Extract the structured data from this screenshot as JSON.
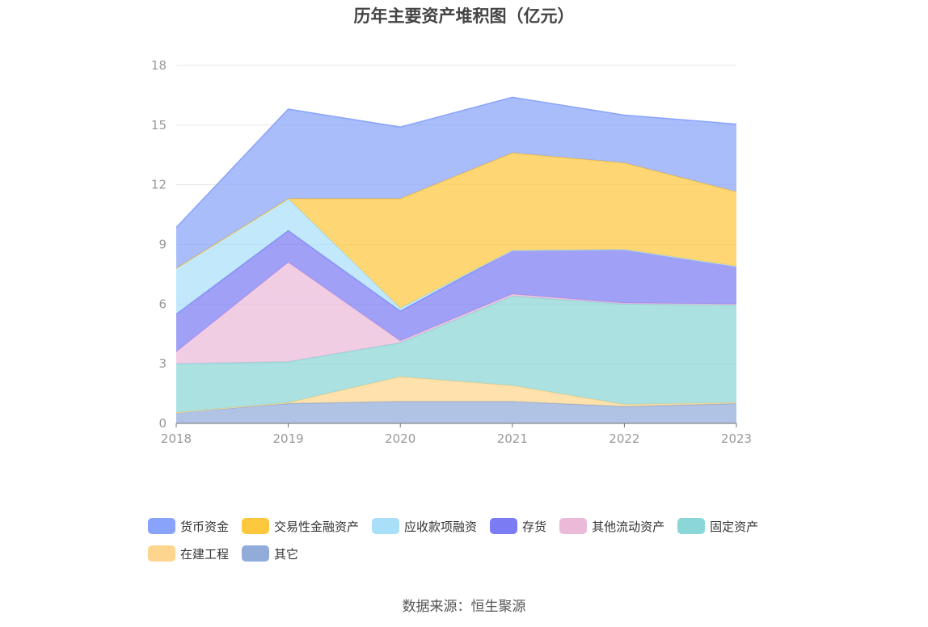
{
  "chart_data": {
    "type": "area",
    "stacked": true,
    "title": "历年主要资产堆积图（亿元）",
    "x": [
      "2018",
      "2019",
      "2020",
      "2021",
      "2022",
      "2023"
    ],
    "ylim": [
      0,
      18
    ],
    "yticks": [
      "0",
      "3",
      "6",
      "9",
      "12",
      "15",
      "18"
    ],
    "grid": true,
    "legend_position": "bottom",
    "series": [
      {
        "name": "其它",
        "color": "#91acd9",
        "values": [
          0.55,
          1.0,
          1.1,
          1.1,
          0.85,
          1.0
        ]
      },
      {
        "name": "在建工程",
        "color": "#fdd58e",
        "values": [
          0.0,
          0.05,
          1.25,
          0.8,
          0.1,
          0.05
        ]
      },
      {
        "name": "固定资产",
        "color": "#8bd6d6",
        "values": [
          2.45,
          2.05,
          1.7,
          4.5,
          5.05,
          4.9
        ]
      },
      {
        "name": "其他流动资产",
        "color": "#ebbad9",
        "values": [
          0.6,
          5.0,
          0.1,
          0.1,
          0.05,
          0.05
        ]
      },
      {
        "name": "存货",
        "color": "#7b7cf3",
        "values": [
          1.9,
          1.6,
          1.5,
          2.2,
          2.7,
          1.9
        ]
      },
      {
        "name": "应收款项融资",
        "color": "#a9dff9",
        "values": [
          2.3,
          1.6,
          0.15,
          0.0,
          0.0,
          0.0
        ]
      },
      {
        "name": "交易性金融资产",
        "color": "#fec83e",
        "values": [
          0.0,
          0.0,
          5.5,
          4.9,
          4.35,
          3.75
        ]
      },
      {
        "name": "货币资金",
        "color": "#89a3fa",
        "values": [
          2.05,
          4.5,
          3.6,
          2.8,
          2.4,
          3.4
        ]
      }
    ],
    "legend_order": [
      "货币资金",
      "交易性金融资产",
      "应收款项融资",
      "存货",
      "其他流动资产",
      "固定资产",
      "在建工程",
      "其它"
    ]
  },
  "source": "数据来源：恒生聚源"
}
